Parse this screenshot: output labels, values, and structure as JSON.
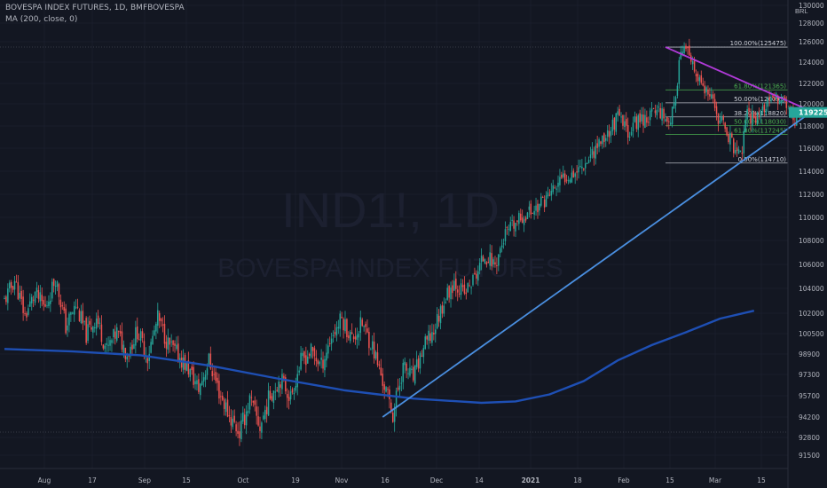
{
  "header": {
    "symbol_line": "BOVESPA INDEX FUTURES, 1D, BMFBOVESPA",
    "indicator_line": "MA (200, close, 0)"
  },
  "watermark": {
    "ticker": "IND1!, 1D",
    "name": "BOVESPA INDEX FUTURES"
  },
  "chart_data": {
    "type": "candlestick",
    "title": "BOVESPA INDEX FUTURES, 1D, BMFBOVESPA",
    "currency": "BRL",
    "y_axis": {
      "ticks": [
        "130000",
        "128000",
        "126000",
        "124000",
        "122000",
        "120000",
        "118000",
        "116000",
        "114000",
        "112000",
        "110000",
        "108000",
        "106000",
        "104000",
        "102000",
        "100500",
        "98900",
        "97300",
        "95700",
        "94200",
        "92800",
        "91500"
      ],
      "range": [
        91000,
        131000
      ]
    },
    "x_axis": {
      "ticks": [
        "Aug",
        "17",
        "Sep",
        "15",
        "Oct",
        "19",
        "Nov",
        "16",
        "Dec",
        "14",
        "2021",
        "18",
        "Feb",
        "15",
        "Mar",
        "15"
      ]
    },
    "last_price": "119225",
    "colors": {
      "up": "#26a69a",
      "down": "#ef5350",
      "ma": "#1e4fb4",
      "trendline": "#4a8fe0",
      "resistance": "#b03ad8",
      "last_price_badge": "#26a69a"
    },
    "close_path": [
      [
        0,
        103000
      ],
      [
        6,
        104700
      ],
      [
        12,
        101800
      ],
      [
        18,
        103600
      ],
      [
        24,
        102400
      ],
      [
        30,
        104900
      ],
      [
        36,
        101000
      ],
      [
        42,
        102600
      ],
      [
        48,
        100400
      ],
      [
        54,
        101700
      ],
      [
        60,
        99200
      ],
      [
        66,
        100600
      ],
      [
        72,
        98900
      ],
      [
        78,
        100700
      ],
      [
        84,
        98700
      ],
      [
        90,
        101600
      ],
      [
        96,
        99700
      ],
      [
        102,
        98800
      ],
      [
        108,
        97700
      ],
      [
        114,
        96200
      ],
      [
        120,
        98400
      ],
      [
        126,
        96000
      ],
      [
        132,
        94300
      ],
      [
        138,
        93100
      ],
      [
        144,
        95400
      ],
      [
        150,
        93500
      ],
      [
        156,
        95800
      ],
      [
        162,
        97000
      ],
      [
        168,
        95600
      ],
      [
        174,
        98300
      ],
      [
        180,
        99100
      ],
      [
        186,
        98000
      ],
      [
        192,
        100300
      ],
      [
        198,
        101600
      ],
      [
        204,
        100100
      ],
      [
        210,
        101200
      ],
      [
        216,
        99500
      ],
      [
        222,
        96800
      ],
      [
        228,
        94400
      ],
      [
        234,
        97900
      ],
      [
        240,
        97000
      ],
      [
        246,
        99400
      ],
      [
        252,
        100700
      ],
      [
        258,
        103000
      ],
      [
        264,
        104600
      ],
      [
        270,
        103500
      ],
      [
        276,
        104900
      ],
      [
        282,
        106800
      ],
      [
        288,
        106000
      ],
      [
        294,
        108500
      ],
      [
        300,
        109400
      ],
      [
        306,
        110300
      ],
      [
        312,
        110800
      ],
      [
        318,
        111700
      ],
      [
        324,
        112700
      ],
      [
        330,
        113700
      ],
      [
        336,
        114100
      ],
      [
        342,
        115000
      ],
      [
        348,
        116300
      ],
      [
        354,
        117300
      ],
      [
        360,
        118800
      ],
      [
        366,
        117500
      ],
      [
        372,
        118600
      ],
      [
        378,
        118800
      ],
      [
        384,
        119600
      ],
      [
        390,
        118400
      ],
      [
        394,
        120000
      ],
      [
        396,
        124800
      ],
      [
        400,
        125200
      ],
      [
        404,
        123400
      ],
      [
        408,
        122100
      ],
      [
        412,
        121000
      ],
      [
        416,
        120000
      ],
      [
        420,
        118400
      ],
      [
        424,
        117600
      ],
      [
        428,
        116100
      ],
      [
        432,
        115200
      ],
      [
        436,
        118900
      ],
      [
        440,
        118800
      ],
      [
        444,
        119300
      ],
      [
        448,
        120000
      ],
      [
        452,
        120300
      ],
      [
        456,
        120700
      ],
      [
        460,
        119600
      ],
      [
        464,
        118700
      ],
      [
        468,
        119225
      ]
    ],
    "ma_200": [
      [
        0,
        99300
      ],
      [
        40,
        99100
      ],
      [
        80,
        98800
      ],
      [
        120,
        98000
      ],
      [
        160,
        97000
      ],
      [
        200,
        96100
      ],
      [
        240,
        95500
      ],
      [
        280,
        95200
      ],
      [
        300,
        95300
      ],
      [
        320,
        95800
      ],
      [
        340,
        96800
      ],
      [
        360,
        98400
      ],
      [
        380,
        99600
      ],
      [
        400,
        100600
      ],
      [
        420,
        101600
      ],
      [
        440,
        102200
      ]
    ],
    "trendlines": [
      {
        "name": "support",
        "from": [
          222,
          94200
        ],
        "to": [
          474,
          119300
        ]
      },
      {
        "name": "resistance",
        "from": [
          388,
          125475
        ],
        "to": [
          474,
          119300
        ]
      }
    ],
    "fib_sets": [
      {
        "levels": [
          {
            "label": "100.00%(125475)",
            "value": 125475
          },
          {
            "label": "50.00%(120095)",
            "value": 120095
          },
          {
            "label": "38.20%(118820)",
            "value": 118820
          },
          {
            "label": "0.00%(114710)",
            "value": 114710
          }
        ],
        "color": "#d1d4dc"
      },
      {
        "levels": [
          {
            "label": "61.80%(121365)",
            "value": 121365
          },
          {
            "label": "50.00%(118030)",
            "value": 118030
          },
          {
            "label": "61.80%(117245)",
            "value": 117245
          }
        ],
        "color": "#4caf50"
      }
    ]
  }
}
